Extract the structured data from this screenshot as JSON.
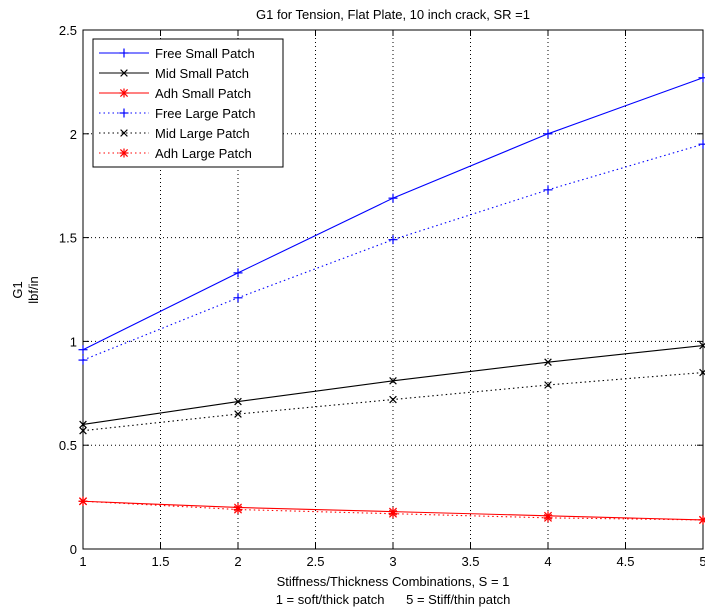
{
  "chart_data": {
    "type": "line",
    "title": "G1 for Tension, Flat Plate, 10 inch crack, SR =1",
    "xlabel": "Stiffness/Thickness Combinations, S = 1",
    "xlabel_line2": "1 = soft/thick patch      5 = Stiff/thin patch",
    "ylabel": "G1",
    "ylabel_line2": "lbf/in",
    "xlim": [
      1,
      5
    ],
    "ylim": [
      0,
      2.5
    ],
    "xticks": [
      1,
      1.5,
      2,
      2.5,
      3,
      3.5,
      4,
      4.5,
      5
    ],
    "yticks": [
      0,
      0.5,
      1,
      1.5,
      2,
      2.5
    ],
    "xtick_labels": [
      "1",
      "1.5",
      "2",
      "2.5",
      "3",
      "3.5",
      "4",
      "4.5",
      "5"
    ],
    "ytick_labels": [
      "0",
      "0.5",
      "1",
      "1.5",
      "2",
      "2.5"
    ],
    "grid": true,
    "legend_position": "top-left",
    "x": [
      1,
      2,
      3,
      4,
      5
    ],
    "series": [
      {
        "name": "Free Small Patch",
        "values": [
          0.96,
          1.33,
          1.69,
          2.0,
          2.27
        ],
        "color": "#0000ff",
        "line": "solid",
        "marker": "plus"
      },
      {
        "name": "Mid Small Patch",
        "values": [
          0.6,
          0.71,
          0.81,
          0.9,
          0.98
        ],
        "color": "#000000",
        "line": "solid",
        "marker": "x"
      },
      {
        "name": "Adh Small Patch",
        "values": [
          0.23,
          0.2,
          0.18,
          0.16,
          0.14
        ],
        "color": "#ff0000",
        "line": "solid",
        "marker": "star"
      },
      {
        "name": "Free Large Patch",
        "values": [
          0.91,
          1.21,
          1.49,
          1.73,
          1.95
        ],
        "color": "#0000ff",
        "line": "dotted",
        "marker": "plus"
      },
      {
        "name": "Mid Large Patch",
        "values": [
          0.57,
          0.65,
          0.72,
          0.79,
          0.85
        ],
        "color": "#000000",
        "line": "dotted",
        "marker": "x"
      },
      {
        "name": "Adh Large Patch",
        "values": [
          0.23,
          0.19,
          0.17,
          0.15,
          0.14
        ],
        "color": "#ff0000",
        "line": "dotted",
        "marker": "star"
      }
    ]
  }
}
